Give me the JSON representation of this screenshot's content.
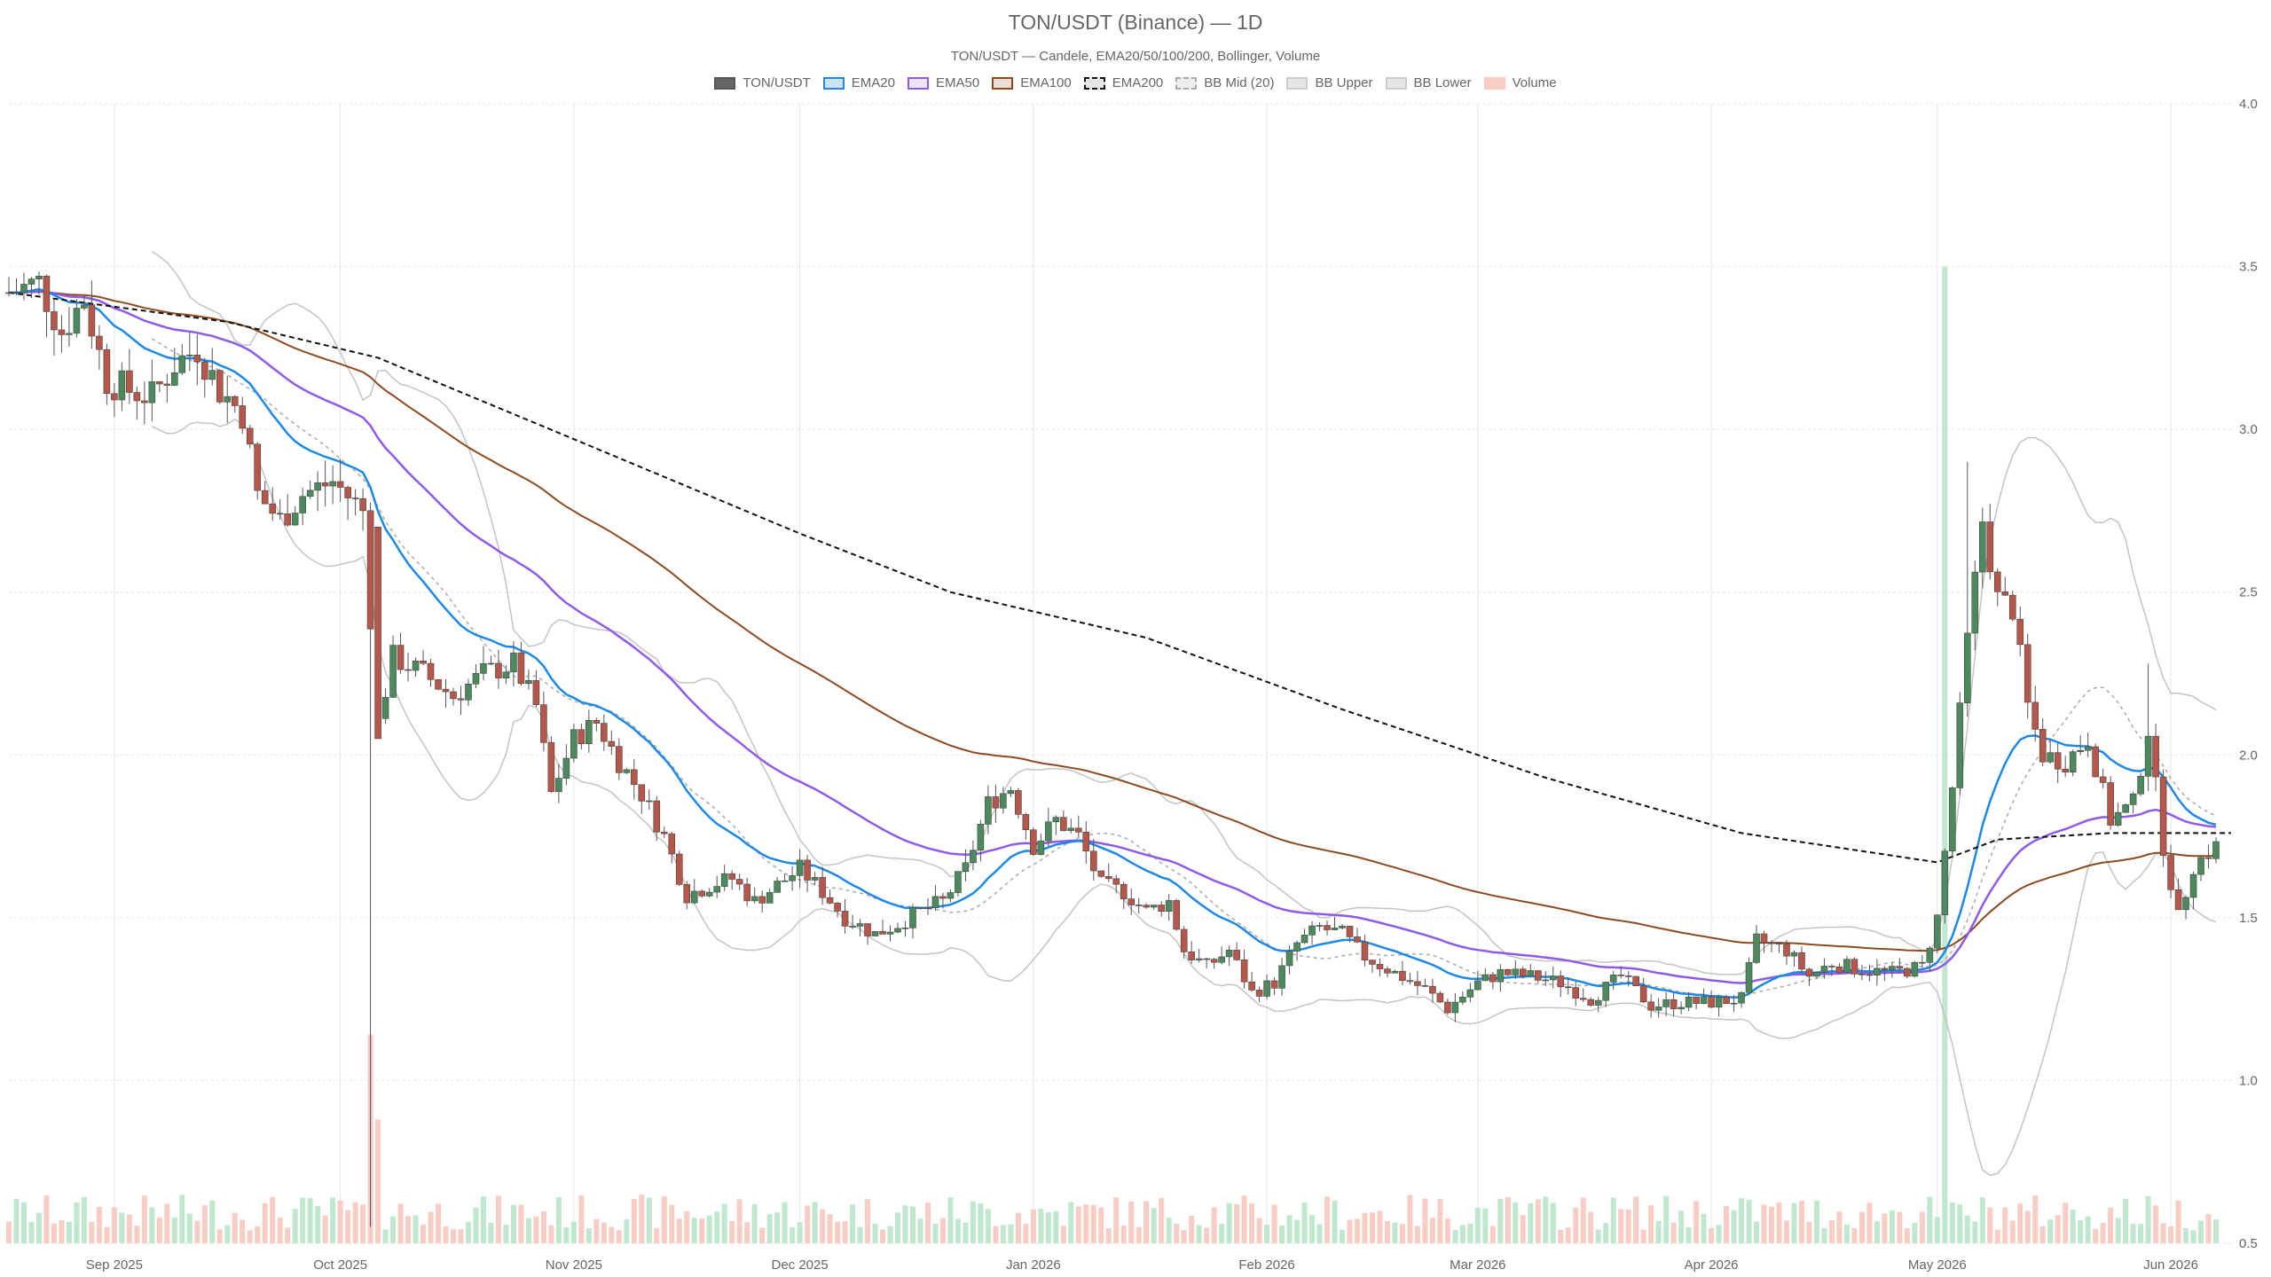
{
  "chart_data": {
    "type": "candlestick",
    "title": "TON/USDT (Binance) — 1D",
    "subtitle": "TON/USDT — Candele, EMA20/50/100/200, Bollinger, Volume",
    "ylim": [
      0.5,
      4.0
    ],
    "y_ticks": [
      "4.0",
      "3.5",
      "3.0",
      "2.5",
      "2.0",
      "1.5",
      "1.0",
      "0.5"
    ],
    "y_tick_values": [
      4.0,
      3.5,
      3.0,
      2.5,
      2.0,
      1.5,
      1.0,
      0.5
    ],
    "x_ticks": [
      "Sep 2025",
      "Oct 2025",
      "Nov 2025",
      "Dec 2025",
      "Jan 2026",
      "Feb 2026",
      "Mar 2026",
      "Apr 2026",
      "May 2026",
      "Jun 2026"
    ],
    "x_tick_days": [
      0,
      30,
      61,
      91,
      122,
      153,
      181,
      212,
      242,
      273
    ],
    "x_range_days": [
      -14,
      281
    ],
    "grid": true,
    "legend_position": "top-center",
    "legend": [
      {
        "label": "TON/USDT",
        "fill": "#666666",
        "stroke": "#555555",
        "dash": false
      },
      {
        "label": "EMA20",
        "fill": "#cfe3f7",
        "stroke": "#1e88e5",
        "dash": false
      },
      {
        "label": "EMA50",
        "fill": "#ece4fb",
        "stroke": "#8e5be8",
        "dash": false
      },
      {
        "label": "EMA100",
        "fill": "#eadfd6",
        "stroke": "#8b4a22",
        "dash": false
      },
      {
        "label": "EMA200",
        "fill": "#e6e6e6",
        "stroke": "#111111",
        "dash": true
      },
      {
        "label": "BB Mid (20)",
        "fill": "#eeeeee",
        "stroke": "#aaaaaa",
        "dash": true
      },
      {
        "label": "BB Upper",
        "fill": "#e6e6e6",
        "stroke": "#cccccc",
        "dash": false
      },
      {
        "label": "BB Lower",
        "fill": "#e6e6e6",
        "stroke": "#cccccc",
        "dash": false
      },
      {
        "label": "Volume",
        "fill": "#f8cdc6",
        "stroke": "#f8cdc6",
        "dash": false
      }
    ],
    "colors": {
      "up": "#4c8a5e",
      "down": "#b5574b",
      "volume_up": "#bfe8cf",
      "volume_down": "#f8cdc6",
      "grid": "#e6e6e6"
    },
    "close_path": [
      [
        -14,
        3.42
      ],
      [
        -10,
        3.45
      ],
      [
        -7,
        3.3
      ],
      [
        -4,
        3.4
      ],
      [
        -1,
        3.15
      ],
      [
        2,
        3.12
      ],
      [
        5,
        3.1
      ],
      [
        8,
        3.2
      ],
      [
        11,
        3.25
      ],
      [
        14,
        3.12
      ],
      [
        17,
        3.05
      ],
      [
        19,
        2.8
      ],
      [
        22,
        2.72
      ],
      [
        25,
        2.8
      ],
      [
        29,
        2.84
      ],
      [
        33,
        2.75
      ],
      [
        35,
        2.1
      ],
      [
        37,
        2.3
      ],
      [
        41,
        2.25
      ],
      [
        45,
        2.18
      ],
      [
        49,
        2.25
      ],
      [
        53,
        2.28
      ],
      [
        56,
        2.15
      ],
      [
        58,
        1.88
      ],
      [
        61,
        2.05
      ],
      [
        64,
        2.1
      ],
      [
        67,
        1.98
      ],
      [
        70,
        1.88
      ],
      [
        73,
        1.75
      ],
      [
        76,
        1.57
      ],
      [
        79,
        1.6
      ],
      [
        82,
        1.62
      ],
      [
        85,
        1.55
      ],
      [
        88,
        1.6
      ],
      [
        91,
        1.65
      ],
      [
        94,
        1.58
      ],
      [
        97,
        1.5
      ],
      [
        101,
        1.45
      ],
      [
        104,
        1.48
      ],
      [
        107,
        1.52
      ],
      [
        110,
        1.55
      ],
      [
        113,
        1.65
      ],
      [
        116,
        1.85
      ],
      [
        119,
        1.9
      ],
      [
        122,
        1.72
      ],
      [
        125,
        1.8
      ],
      [
        128,
        1.75
      ],
      [
        131,
        1.6
      ],
      [
        134,
        1.58
      ],
      [
        137,
        1.52
      ],
      [
        140,
        1.55
      ],
      [
        142,
        1.4
      ],
      [
        145,
        1.35
      ],
      [
        148,
        1.4
      ],
      [
        151,
        1.27
      ],
      [
        154,
        1.3
      ],
      [
        157,
        1.42
      ],
      [
        160,
        1.47
      ],
      [
        163,
        1.45
      ],
      [
        166,
        1.38
      ],
      [
        170,
        1.33
      ],
      [
        174,
        1.28
      ],
      [
        177,
        1.22
      ],
      [
        181,
        1.3
      ],
      [
        184,
        1.33
      ],
      [
        188,
        1.32
      ],
      [
        192,
        1.3
      ],
      [
        196,
        1.25
      ],
      [
        200,
        1.32
      ],
      [
        204,
        1.23
      ],
      [
        208,
        1.24
      ],
      [
        212,
        1.24
      ],
      [
        216,
        1.25
      ],
      [
        218,
        1.43
      ],
      [
        222,
        1.4
      ],
      [
        225,
        1.32
      ],
      [
        228,
        1.36
      ],
      [
        232,
        1.34
      ],
      [
        236,
        1.33
      ],
      [
        240,
        1.35
      ],
      [
        242,
        1.5
      ],
      [
        244,
        1.9
      ],
      [
        246,
        2.35
      ],
      [
        248,
        2.72
      ],
      [
        250,
        2.48
      ],
      [
        252,
        2.45
      ],
      [
        254,
        2.15
      ],
      [
        256,
        2.0
      ],
      [
        259,
        1.98
      ],
      [
        262,
        2.05
      ],
      [
        265,
        1.8
      ],
      [
        268,
        1.85
      ],
      [
        270,
        2.08
      ],
      [
        272,
        1.72
      ],
      [
        274,
        1.5
      ],
      [
        276,
        1.66
      ],
      [
        279,
        1.72
      ]
    ],
    "ema_200": [
      [
        -14,
        3.42
      ],
      [
        15,
        3.33
      ],
      [
        35,
        3.22
      ],
      [
        61,
        2.97
      ],
      [
        91,
        2.68
      ],
      [
        111,
        2.5
      ],
      [
        137,
        2.36
      ],
      [
        163,
        2.14
      ],
      [
        190,
        1.93
      ],
      [
        216,
        1.76
      ],
      [
        242,
        1.67
      ],
      [
        250,
        1.74
      ],
      [
        265,
        1.76
      ],
      [
        281,
        1.76
      ]
    ]
  }
}
